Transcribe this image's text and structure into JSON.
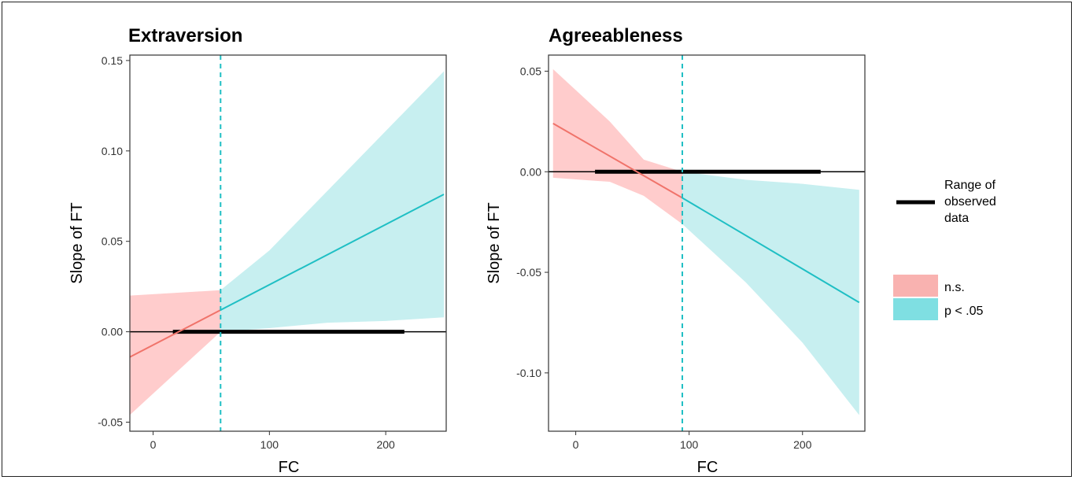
{
  "colors": {
    "ns_line": "#f0736a",
    "ns_band": "#ffcccc",
    "sig_line": "#1fbfc4",
    "sig_band": "#c7eff0",
    "legend_ns": "#f9b2b0",
    "legend_sig": "#7fdfe2",
    "range_bar": "#000000",
    "zero_line": "#000000",
    "cutoff_line": "#1fbfc4"
  },
  "legend": {
    "range_label": [
      "Range of",
      "observed",
      "data"
    ],
    "items": [
      {
        "label": "n.s.",
        "color_key": "legend_ns"
      },
      {
        "label": "p < .05",
        "color_key": "legend_sig"
      }
    ]
  },
  "chart_data": [
    {
      "type": "line",
      "title": "Extraversion",
      "xlabel": "FC",
      "ylabel": "Slope of FT",
      "xlim": [
        -20,
        252
      ],
      "ylim": [
        -0.055,
        0.153
      ],
      "xticks": [
        0,
        100,
        200
      ],
      "xtick_labels": [
        "0",
        "100",
        "200"
      ],
      "yticks": [
        -0.05,
        0,
        0.05,
        0.1,
        0.15
      ],
      "ytick_labels": [
        "-0.05",
        "0.00",
        "0.05",
        "0.10",
        "0.15"
      ],
      "grid": false,
      "zero_line": 0,
      "cutoff_x": 58,
      "range_of_observed_data": [
        17,
        216
      ],
      "band_points": [
        {
          "x": -20,
          "lower": -0.046,
          "upper": 0.02
        },
        {
          "x": 58,
          "lower": 0.0,
          "upper": 0.023
        },
        {
          "x": 100,
          "lower": 0.002,
          "upper": 0.045
        },
        {
          "x": 150,
          "lower": 0.005,
          "upper": 0.078
        },
        {
          "x": 200,
          "lower": 0.006,
          "upper": 0.111
        },
        {
          "x": 250,
          "lower": 0.008,
          "upper": 0.144
        }
      ],
      "series": [
        {
          "name": "n.s.",
          "x": [
            -20,
            58
          ],
          "y": [
            -0.014,
            0.012
          ]
        },
        {
          "name": "p < .05",
          "x": [
            58,
            250
          ],
          "y": [
            0.012,
            0.076
          ]
        }
      ]
    },
    {
      "type": "line",
      "title": "Agreeableness",
      "xlabel": "FC",
      "ylabel": "Slope of FT",
      "xlim": [
        -24,
        255
      ],
      "ylim": [
        -0.129,
        0.058
      ],
      "xticks": [
        0,
        100,
        200
      ],
      "xtick_labels": [
        "0",
        "100",
        "200"
      ],
      "yticks": [
        -0.1,
        -0.05,
        0,
        0.05
      ],
      "ytick_labels": [
        "-0.10",
        "-0.05",
        "0.00",
        "0.05"
      ],
      "grid": false,
      "zero_line": 0,
      "cutoff_x": 94,
      "range_of_observed_data": [
        17,
        216
      ],
      "band_points": [
        {
          "x": -20,
          "lower": -0.003,
          "upper": 0.051
        },
        {
          "x": 30,
          "lower": -0.005,
          "upper": 0.025
        },
        {
          "x": 60,
          "lower": -0.012,
          "upper": 0.006
        },
        {
          "x": 94,
          "lower": -0.026,
          "upper": 0.0
        },
        {
          "x": 150,
          "lower": -0.055,
          "upper": -0.004
        },
        {
          "x": 200,
          "lower": -0.085,
          "upper": -0.006
        },
        {
          "x": 250,
          "lower": -0.121,
          "upper": -0.009
        }
      ],
      "series": [
        {
          "name": "n.s.",
          "x": [
            -20,
            94
          ],
          "y": [
            0.024,
            -0.013
          ]
        },
        {
          "name": "p < .05",
          "x": [
            94,
            250
          ],
          "y": [
            -0.013,
            -0.065
          ]
        }
      ]
    }
  ]
}
